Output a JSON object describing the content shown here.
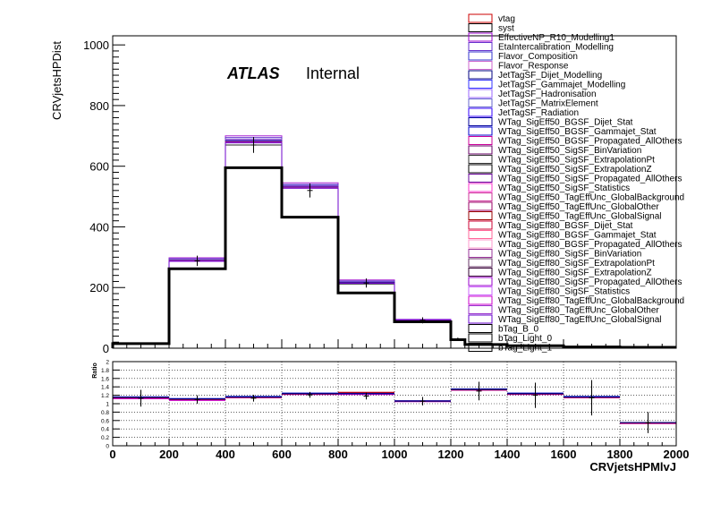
{
  "chart_data": [
    {
      "type": "bar",
      "style": "histogram",
      "ylabel": "CRVjetsHPDist",
      "ylim": [
        0,
        1030
      ],
      "xlim": [
        0,
        2000
      ],
      "x_ticks": [
        "0",
        "200",
        "400",
        "600",
        "800",
        "1000",
        "1200",
        "1400",
        "1600",
        "1800",
        "2000"
      ],
      "y_ticks": [
        "0",
        "200",
        "400",
        "600",
        "800",
        "1000"
      ],
      "annotation_bold": "ATLAS",
      "annotation_plain": "Internal",
      "bin_edges": [
        0,
        200,
        400,
        600,
        800,
        1000,
        1200,
        1250,
        1400,
        1600,
        1800,
        2000
      ],
      "series": [
        {
          "name": "vtag",
          "color": "#cc0000",
          "values": [
            15,
            288,
            680,
            530,
            215,
            92,
            30,
            12,
            8,
            4,
            3
          ]
        },
        {
          "name": "syst",
          "color": "#000000",
          "values": [
            15,
            290,
            670,
            530,
            212,
            90,
            30,
            12,
            8,
            4,
            3
          ]
        },
        {
          "name": "EffectiveNP_R10_Modelling1",
          "color": "#9900cc",
          "values": [
            15,
            298,
            700,
            545,
            225,
            95,
            31,
            13,
            8,
            4,
            3
          ]
        },
        {
          "name": "EtaIntercalibration_Modelling",
          "color": "#6633cc",
          "values": [
            15,
            295,
            695,
            540,
            222,
            94,
            31,
            13,
            8,
            4,
            3
          ]
        },
        {
          "name": "Flavor_Composition",
          "color": "#3333cc",
          "values": [
            15,
            292,
            690,
            537,
            220,
            93,
            31,
            12,
            8,
            4,
            3
          ]
        },
        {
          "name": "Flavor_Response",
          "color": "#cc66cc",
          "values": [
            15,
            290,
            688,
            535,
            218,
            93,
            30,
            12,
            8,
            4,
            3
          ]
        },
        {
          "name": "JetTagSF_Dijet_Modelling",
          "color": "#000080",
          "values": [
            15,
            289,
            685,
            533,
            217,
            92,
            30,
            12,
            8,
            4,
            3
          ]
        },
        {
          "name": "JetTagSF_Gammajet_Modelling",
          "color": "#3333ff",
          "values": [
            15,
            289,
            684,
            533,
            217,
            92,
            30,
            12,
            8,
            4,
            3
          ]
        },
        {
          "name": "JetTagSF_Hadronisation",
          "color": "#9966ff",
          "values": [
            15,
            289,
            684,
            532,
            216,
            92,
            30,
            12,
            8,
            4,
            3
          ]
        },
        {
          "name": "JetTagSF_MatrixElement",
          "color": "#6666cc",
          "values": [
            15,
            289,
            683,
            532,
            216,
            92,
            30,
            12,
            8,
            4,
            3
          ]
        },
        {
          "name": "JetTagSF_Radiation",
          "color": "#3300ff",
          "values": [
            15,
            289,
            683,
            532,
            216,
            92,
            30,
            12,
            8,
            4,
            3
          ]
        },
        {
          "name": "WTag_SigEff50_BGSF_Dijet_Stat",
          "color": "#000099",
          "values": [
            15,
            288,
            682,
            531,
            216,
            92,
            30,
            12,
            8,
            4,
            3
          ]
        },
        {
          "name": "WTag_SigEff50_BGSF_Gammajet_Stat",
          "color": "#0000cc",
          "values": [
            15,
            288,
            682,
            531,
            216,
            92,
            30,
            12,
            8,
            4,
            3
          ]
        },
        {
          "name": "WTag_SigEff50_BGSF_Propagated_AllOthers",
          "color": "#cc0099",
          "values": [
            15,
            288,
            681,
            531,
            215,
            92,
            30,
            12,
            8,
            4,
            3
          ]
        },
        {
          "name": "WTag_SigEff50_SigSF_BinVariation",
          "color": "#660066",
          "values": [
            15,
            288,
            681,
            530,
            215,
            92,
            30,
            12,
            8,
            4,
            3
          ]
        },
        {
          "name": "WTag_SigEff50_SigSF_ExtrapolationPt",
          "color": "#333333",
          "values": [
            15,
            288,
            681,
            530,
            215,
            92,
            30,
            12,
            8,
            4,
            3
          ]
        },
        {
          "name": "WTag_SigEff50_SigSF_ExtrapolationZ",
          "color": "#000000",
          "values": [
            15,
            288,
            680,
            530,
            215,
            92,
            30,
            12,
            8,
            4,
            3
          ]
        },
        {
          "name": "WTag_SigEff50_SigSF_Propagated_AllOthers",
          "color": "#660099",
          "values": [
            15,
            288,
            680,
            530,
            215,
            92,
            30,
            12,
            8,
            4,
            3
          ]
        },
        {
          "name": "WTag_SigEff50_SigSF_Statistics",
          "color": "#ff33cc",
          "values": [
            15,
            288,
            680,
            530,
            215,
            92,
            30,
            12,
            8,
            4,
            3
          ]
        },
        {
          "name": "WTag_SigEff50_TagEffUnc_GlobalBackground",
          "color": "#cc3399",
          "values": [
            15,
            288,
            680,
            530,
            215,
            92,
            30,
            12,
            8,
            4,
            3
          ]
        },
        {
          "name": "WTag_SigEff50_TagEffUnc_GlobalOther",
          "color": "#990066",
          "values": [
            15,
            288,
            680,
            530,
            215,
            92,
            30,
            12,
            8,
            4,
            3
          ]
        },
        {
          "name": "WTag_SigEff50_TagEffUnc_GlobalSignal",
          "color": "#990000",
          "values": [
            15,
            288,
            680,
            530,
            215,
            92,
            30,
            12,
            8,
            4,
            3
          ]
        },
        {
          "name": "WTag_SigEff80_BGSF_Dijet_Stat",
          "color": "#cc0033",
          "values": [
            15,
            287,
            679,
            529,
            215,
            92,
            30,
            12,
            8,
            4,
            3
          ]
        },
        {
          "name": "WTag_SigEff80_BGSF_Gammajet_Stat",
          "color": "#ff6699",
          "values": [
            15,
            287,
            679,
            529,
            215,
            92,
            30,
            12,
            8,
            4,
            3
          ]
        },
        {
          "name": "WTag_SigEff80_BGSF_Propagated_AllOthers",
          "color": "#ff99cc",
          "values": [
            15,
            287,
            679,
            529,
            215,
            92,
            30,
            12,
            8,
            4,
            3
          ]
        },
        {
          "name": "WTag_SigEff80_SigSF_BinVariation",
          "color": "#993399",
          "values": [
            15,
            287,
            679,
            529,
            215,
            92,
            30,
            12,
            8,
            4,
            3
          ]
        },
        {
          "name": "WTag_SigEff80_SigSF_ExtrapolationPt",
          "color": "#663366",
          "values": [
            15,
            287,
            678,
            529,
            215,
            92,
            30,
            12,
            8,
            4,
            3
          ]
        },
        {
          "name": "WTag_SigEff80_SigSF_ExtrapolationZ",
          "color": "#330033",
          "values": [
            15,
            287,
            678,
            528,
            215,
            92,
            30,
            12,
            8,
            4,
            3
          ]
        },
        {
          "name": "WTag_SigEff80_SigSF_Propagated_AllOthers",
          "color": "#9900cc",
          "values": [
            15,
            287,
            678,
            528,
            214,
            92,
            30,
            12,
            8,
            4,
            3
          ]
        },
        {
          "name": "WTag_SigEff80_SigSF_Statistics",
          "color": "#cc66ff",
          "values": [
            15,
            287,
            678,
            528,
            214,
            92,
            30,
            12,
            8,
            4,
            3
          ]
        },
        {
          "name": "WTag_SigEff80_TagEffUnc_GlobalBackground",
          "color": "#cc00cc",
          "values": [
            15,
            287,
            678,
            528,
            214,
            92,
            30,
            12,
            8,
            4,
            3
          ]
        },
        {
          "name": "WTag_SigEff80_TagEffUnc_GlobalOther",
          "color": "#9933cc",
          "values": [
            15,
            287,
            678,
            528,
            214,
            92,
            30,
            12,
            8,
            4,
            3
          ]
        },
        {
          "name": "WTag_SigEff80_TagEffUnc_GlobalSignal",
          "color": "#6600cc",
          "values": [
            15,
            287,
            677,
            528,
            214,
            92,
            30,
            12,
            8,
            4,
            3
          ]
        },
        {
          "name": "bTag_B_0",
          "color": "#000000",
          "values": [
            15,
            262,
            595,
            432,
            182,
            87,
            28,
            12,
            8,
            4,
            3
          ]
        },
        {
          "name": "bTag_Light_0",
          "color": "#000000",
          "values": [
            15,
            262,
            595,
            432,
            182,
            87,
            28,
            12,
            8,
            4,
            3
          ]
        },
        {
          "name": "bTag_Light_1",
          "color": "#000000",
          "values": [
            15,
            262,
            595,
            432,
            182,
            87,
            28,
            12,
            8,
            4,
            3
          ]
        }
      ],
      "nominal": {
        "values": [
          15,
          262,
          595,
          432,
          182,
          87,
          28,
          12,
          8,
          4,
          3
        ]
      },
      "data_points": {
        "x": [
          100,
          300,
          500,
          700,
          900,
          1100,
          1225,
          1325,
          1500,
          1700,
          1900
        ],
        "y": [
          15,
          288,
          670,
          520,
          215,
          92,
          30,
          12,
          8,
          4,
          3
        ],
        "err": [
          4,
          17,
          26,
          23,
          15,
          10,
          5,
          3,
          3,
          2,
          2
        ]
      }
    },
    {
      "type": "bar",
      "style": "ratio-histogram",
      "ylabel": "Ratio",
      "xlabel": "CRVjetsHPMlvJ",
      "ylim": [
        0,
        2
      ],
      "xlim": [
        0,
        2000
      ],
      "y_ticks": [
        "0",
        "0.2",
        "0.4",
        "0.6",
        "0.8",
        "1",
        "1.2",
        "1.4",
        "1.6",
        "1.8",
        "2"
      ],
      "x_ticks": [
        "0",
        "200",
        "400",
        "600",
        "800",
        "1000",
        "1200",
        "1400",
        "1600",
        "1800",
        "2000"
      ],
      "grid": true,
      "bin_edges": [
        0,
        200,
        400,
        600,
        800,
        1000,
        1200,
        1400,
        1600,
        1800,
        2000
      ],
      "series": [
        {
          "color": "#0000cc",
          "values": [
            1.16,
            1.12,
            1.17,
            1.25,
            1.25,
            1.07,
            1.35,
            1.25,
            1.17,
            0.55
          ]
        },
        {
          "color": "#cc00cc",
          "values": [
            1.12,
            1.08,
            1.14,
            1.22,
            1.22,
            1.05,
            1.32,
            1.22,
            1.14,
            0.53
          ]
        },
        {
          "color": "#cc0000",
          "values": [
            1.14,
            1.1,
            1.15,
            1.23,
            1.27,
            1.06,
            1.33,
            1.23,
            1.15,
            0.54
          ]
        },
        {
          "color": "#000080",
          "values": [
            1.15,
            1.11,
            1.16,
            1.24,
            1.24,
            1.06,
            1.34,
            1.24,
            1.16,
            0.55
          ]
        }
      ],
      "data_points": {
        "x": [
          100,
          300,
          500,
          700,
          900,
          1100,
          1300,
          1500,
          1700,
          1900
        ],
        "y": [
          1.13,
          1.1,
          1.13,
          1.21,
          1.18,
          1.06,
          1.3,
          1.2,
          1.14,
          0.55
        ],
        "err": [
          0.2,
          0.1,
          0.08,
          0.07,
          0.08,
          0.1,
          0.22,
          0.3,
          0.42,
          0.25
        ]
      }
    }
  ]
}
